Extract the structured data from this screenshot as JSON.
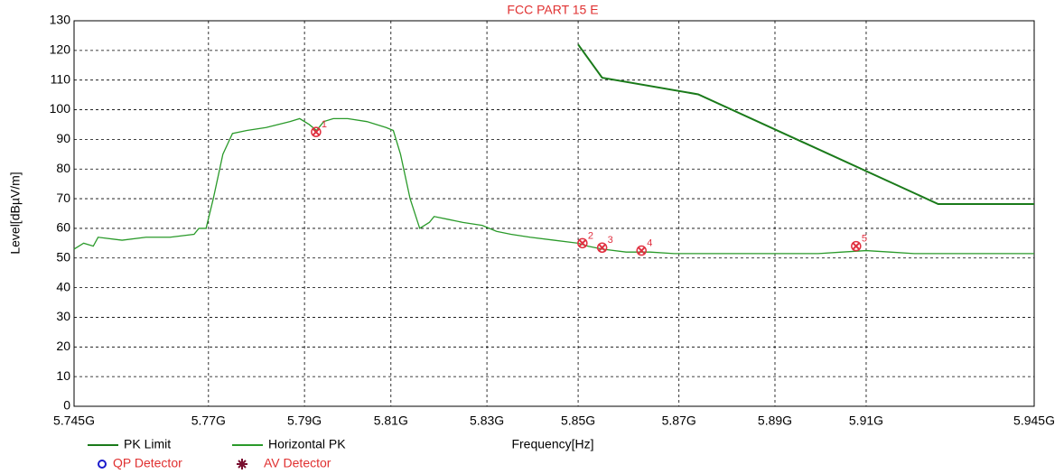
{
  "chart_data": {
    "type": "line",
    "title": "FCC PART 15 E",
    "xlabel": "Frequency[Hz]",
    "ylabel": "Level[dBµV/m]",
    "xlim": [
      5.745,
      5.945
    ],
    "ylim": [
      0,
      130
    ],
    "yticks": [
      0,
      10,
      20,
      30,
      40,
      50,
      60,
      70,
      80,
      90,
      100,
      110,
      120,
      130
    ],
    "xticks": [
      {
        "value": 5.745,
        "label": "5.745G"
      },
      {
        "value": 5.773,
        "label": "5.77G"
      },
      {
        "value": 5.793,
        "label": "5.79G"
      },
      {
        "value": 5.811,
        "label": "5.81G"
      },
      {
        "value": 5.831,
        "label": "5.83G"
      },
      {
        "value": 5.85,
        "label": "5.85G"
      },
      {
        "value": 5.871,
        "label": "5.87G"
      },
      {
        "value": 5.891,
        "label": "5.89G"
      },
      {
        "value": 5.91,
        "label": "5.91G"
      },
      {
        "value": 5.945,
        "label": "5.945G"
      }
    ],
    "grid": true,
    "series": [
      {
        "name": "PK Limit",
        "color": "#1a7a1a",
        "x": [
          5.85,
          5.855,
          5.875,
          5.925,
          5.945
        ],
        "values": [
          122,
          110.8,
          105.2,
          68.2,
          68.2
        ]
      },
      {
        "name": "Horizontal PK",
        "color": "#2a9a2a",
        "x": [
          5.745,
          5.747,
          5.749,
          5.75,
          5.755,
          5.76,
          5.765,
          5.77,
          5.771,
          5.7725,
          5.774,
          5.776,
          5.778,
          5.781,
          5.785,
          5.79,
          5.792,
          5.794,
          5.7955,
          5.797,
          5.799,
          5.802,
          5.806,
          5.81,
          5.8115,
          5.813,
          5.815,
          5.817,
          5.819,
          5.82,
          5.823,
          5.826,
          5.83,
          5.833,
          5.836,
          5.84,
          5.845,
          5.85,
          5.852,
          5.855,
          5.86,
          5.865,
          5.87,
          5.88,
          5.89,
          5.9,
          5.905,
          5.91,
          5.915,
          5.92,
          5.93,
          5.945
        ],
        "values": [
          53,
          55,
          54,
          57,
          56,
          57,
          57,
          58,
          60,
          60,
          70,
          85,
          92,
          93,
          94,
          96,
          97,
          95,
          93,
          96,
          97,
          97,
          96,
          94,
          93,
          85,
          70,
          60,
          62,
          64,
          63,
          62,
          61,
          59,
          58,
          57,
          56,
          55,
          54,
          53,
          52,
          52,
          51.5,
          51.5,
          51.5,
          51.5,
          52,
          52.5,
          52,
          51.5,
          51.5,
          51.5
        ]
      }
    ],
    "markers": [
      {
        "label": "1",
        "x": 5.7954,
        "y": 92.5
      },
      {
        "label": "2",
        "x": 5.8509,
        "y": 55
      },
      {
        "label": "3",
        "x": 5.855,
        "y": 53.5
      },
      {
        "label": "4",
        "x": 5.8632,
        "y": 52.5
      },
      {
        "label": "5",
        "x": 5.9079,
        "y": 54
      }
    ],
    "legend_extra": [
      {
        "name": "QP Detector",
        "color": "#1a1acc"
      },
      {
        "name": "AV Detector",
        "color": "#7a1030"
      }
    ]
  }
}
